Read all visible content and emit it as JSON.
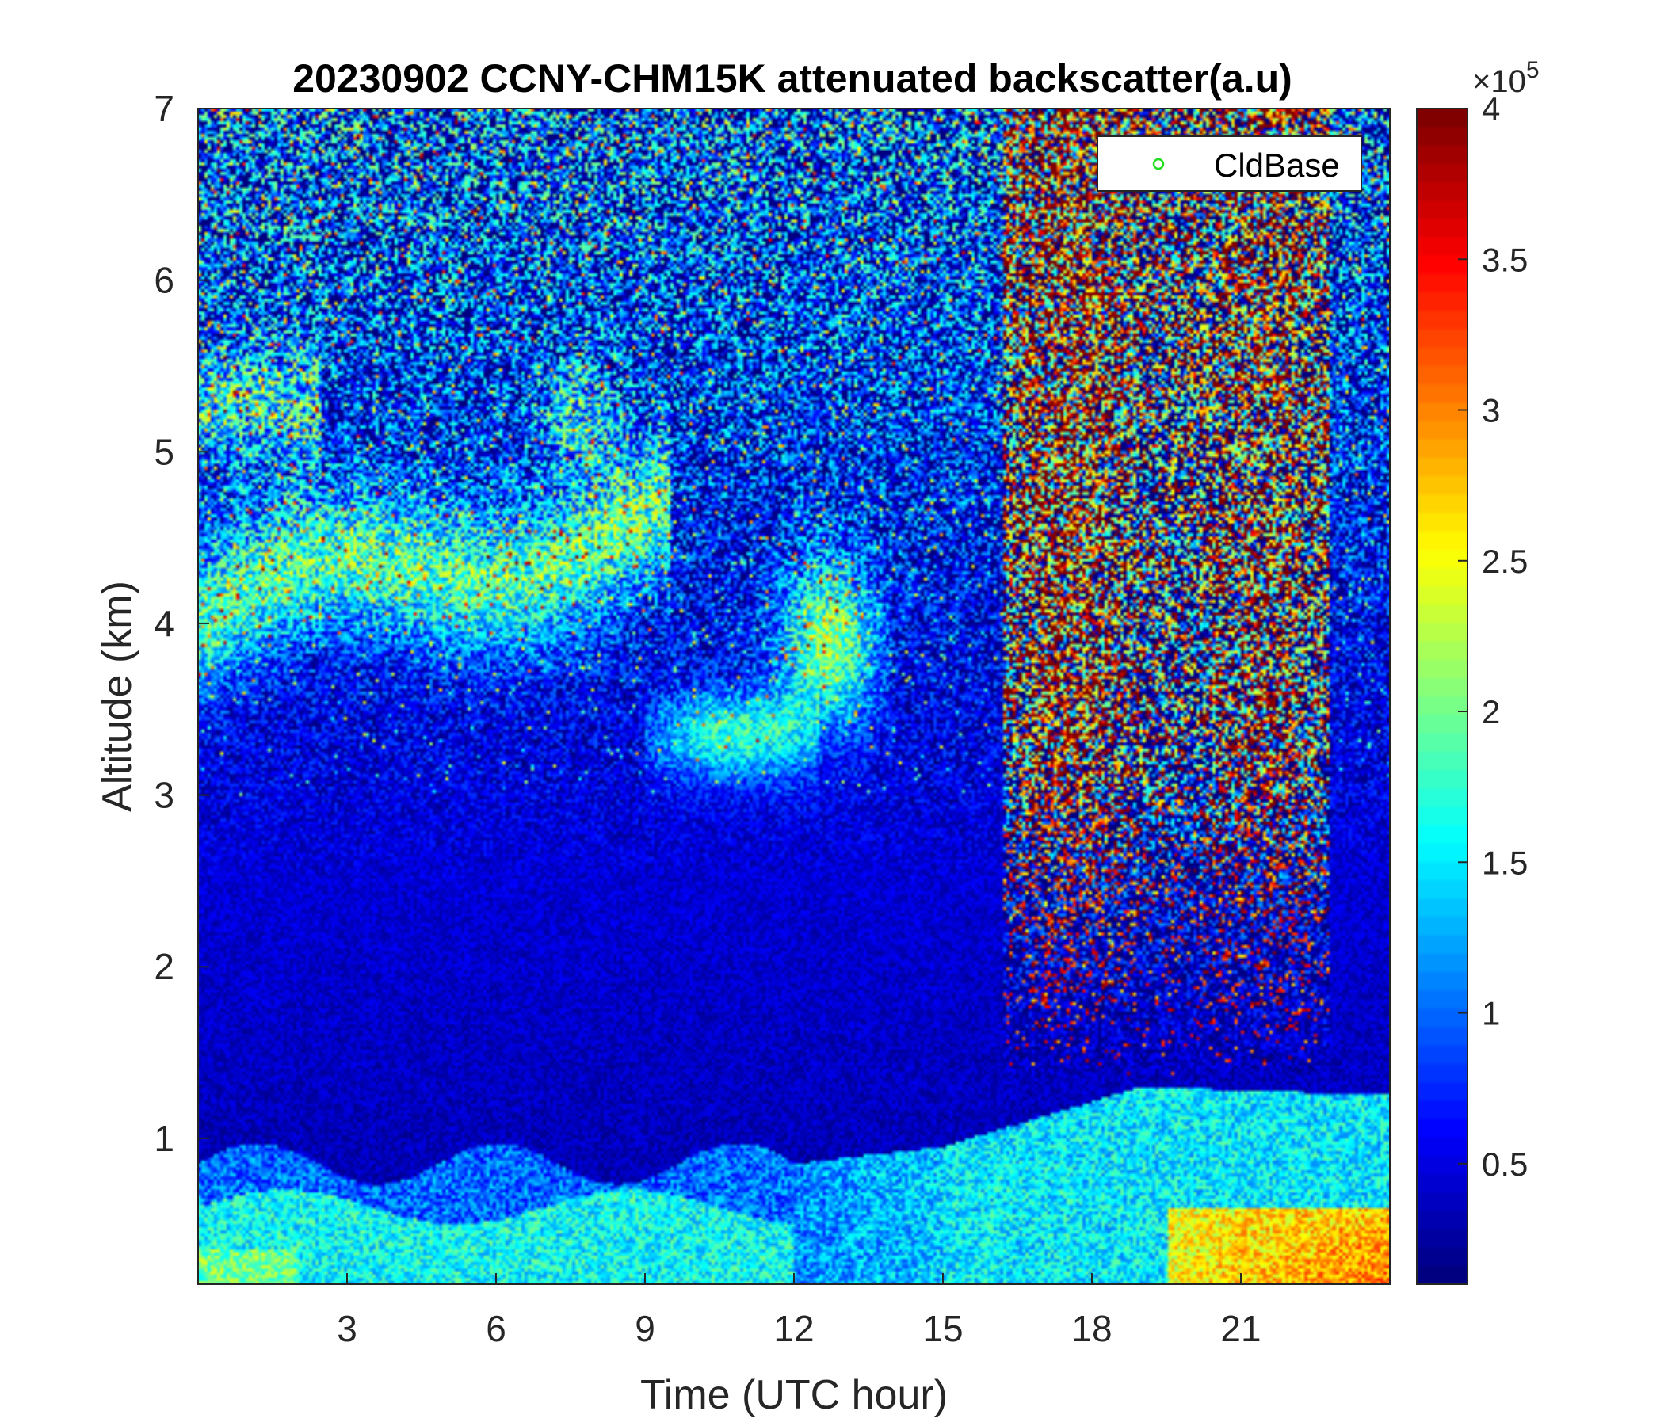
{
  "chart_data": {
    "type": "heatmap",
    "title": "20230902 CCNY-CHM15K attenuated backscatter(a.u)",
    "xlabel": "Time (UTC hour)",
    "ylabel": "Altitude (km)",
    "xlim": [
      0,
      24
    ],
    "ylim": [
      0.15,
      7
    ],
    "x_ticks": [
      3,
      6,
      9,
      12,
      15,
      18,
      21
    ],
    "x_tick_labels": [
      "3",
      "6",
      "9",
      "12",
      "15",
      "18",
      "21"
    ],
    "y_ticks": [
      1,
      2,
      3,
      4,
      5,
      6,
      7
    ],
    "y_tick_labels": [
      "1",
      "2",
      "3",
      "4",
      "5",
      "6",
      "7"
    ],
    "colormap": "jet",
    "colorbar": {
      "range": [
        0.1,
        4
      ],
      "ticks": [
        0.5,
        1,
        1.5,
        2,
        2.5,
        3,
        3.5,
        4
      ],
      "tick_labels": [
        "0.5",
        "1",
        "1.5",
        "2",
        "2.5",
        "3",
        "3.5",
        "4"
      ],
      "exponent_prefix": "×10",
      "exponent": "5"
    },
    "legend": {
      "location": "top-right",
      "entries": [
        {
          "label": "CldBase",
          "marker": "circle",
          "color": "#22dd22"
        }
      ]
    },
    "features": [
      {
        "description": "boundary layer",
        "time_range": [
          0,
          24
        ],
        "altitude_range": [
          0.15,
          1.2
        ],
        "approx_value": 1.5
      },
      {
        "description": "aerosol layer",
        "time_range": [
          0,
          11
        ],
        "altitude_range": [
          3.6,
          4.6
        ],
        "approx_value": 1.8
      },
      {
        "description": "high noisy backscatter column",
        "time_range": [
          16.5,
          22.5
        ],
        "altitude_range": [
          1.3,
          7
        ],
        "approx_value": 3.5
      }
    ]
  }
}
